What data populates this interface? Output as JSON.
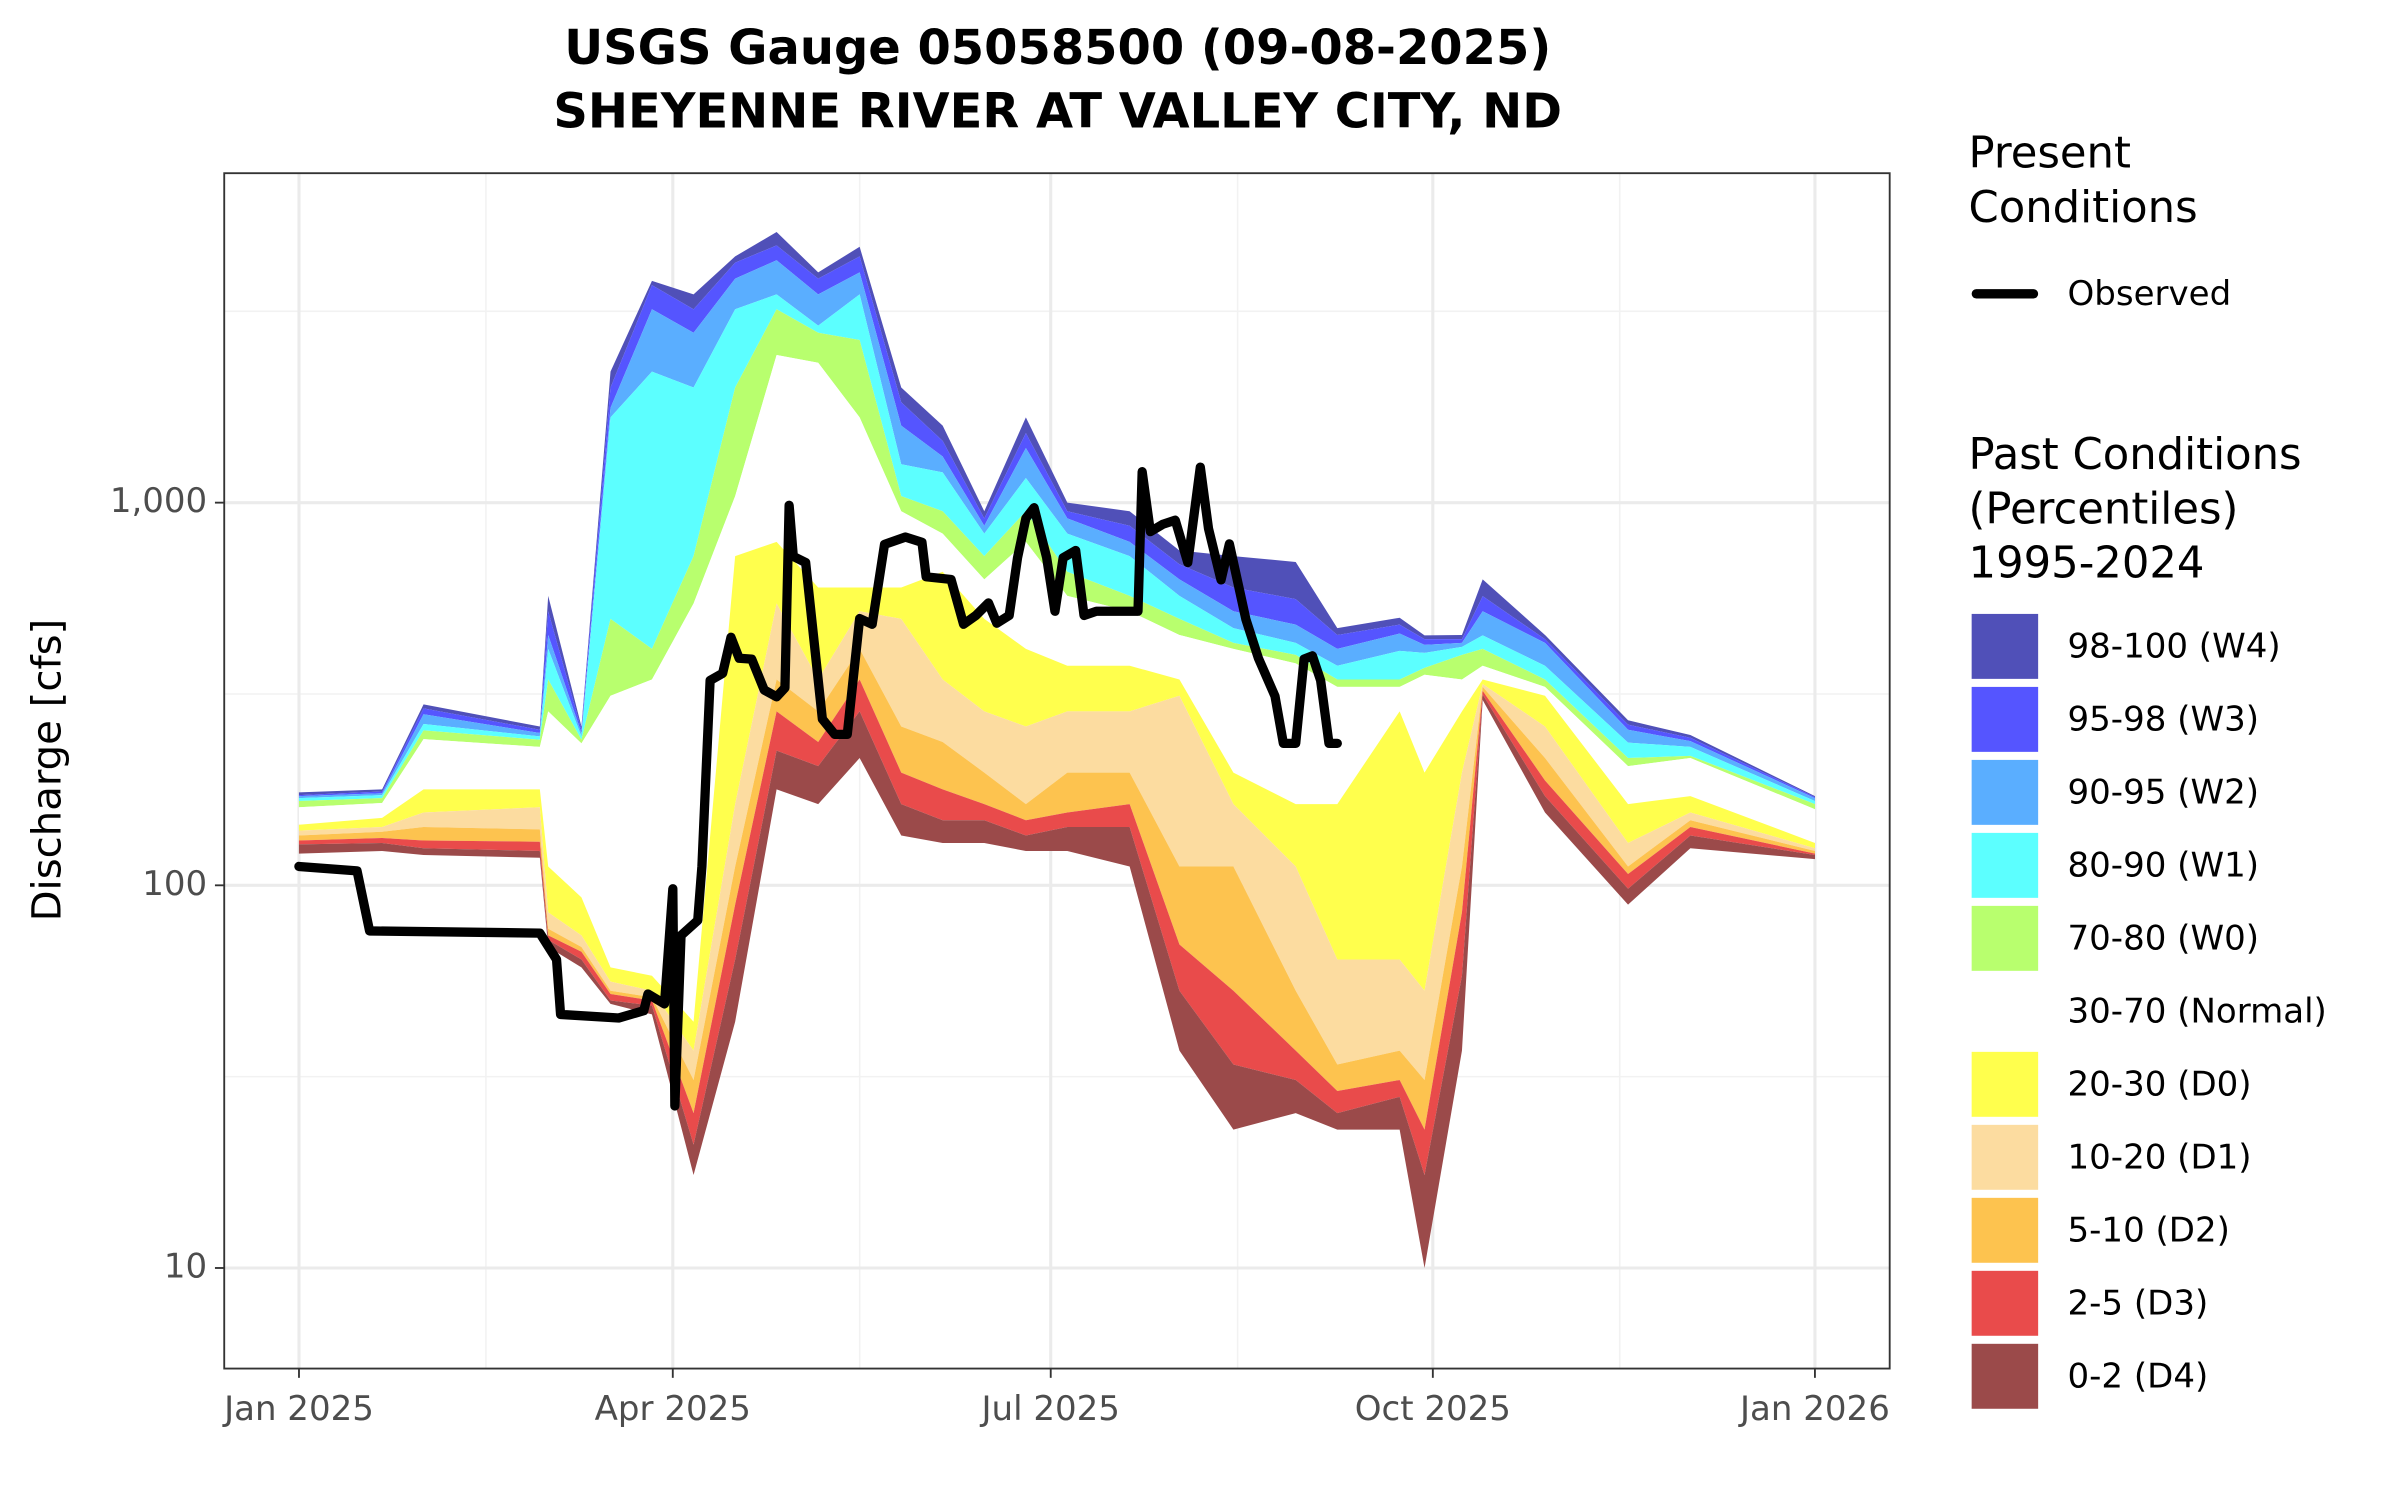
{
  "chart_data": {
    "type": "band",
    "title": "USGS Gauge 05058500 (09-08-2025)",
    "subtitle": "SHEYENNE RIVER AT VALLEY CITY, ND",
    "y_label": "Discharge [cfs]",
    "log_y": true,
    "grid": true,
    "xlim": [
      -18,
      383
    ],
    "ylim": [
      5.46,
      7260
    ],
    "xticks": [
      {
        "value": 0,
        "label": "Jan 2025"
      },
      {
        "value": 90,
        "label": "Apr 2025"
      },
      {
        "value": 181,
        "label": "Jul 2025"
      },
      {
        "value": 273,
        "label": "Oct 2025"
      },
      {
        "value": 365,
        "label": "Jan 2026"
      }
    ],
    "yticks": [
      10,
      100,
      {
        "value": 1000,
        "label": "1,000"
      }
    ],
    "present_title": [
      "Present",
      "Conditions"
    ],
    "past_title": [
      "Past Conditions",
      "(Percentiles)",
      "1995-2024"
    ],
    "observed": {
      "name": "Observed",
      "color": "#000000",
      "x": [
        0,
        14,
        17,
        58,
        62,
        63,
        77,
        83,
        84,
        88,
        90,
        90.5,
        92,
        96,
        97,
        99,
        102,
        104,
        106,
        109,
        112,
        115,
        117,
        118,
        119,
        122,
        126,
        129,
        132,
        135,
        138,
        141,
        146,
        150,
        151,
        157,
        160,
        163,
        166,
        168,
        171,
        173,
        175,
        177,
        180,
        182,
        184,
        187,
        189,
        192,
        202,
        203,
        205,
        208,
        211,
        214,
        217,
        219,
        222,
        224,
        228,
        231,
        235,
        237,
        240,
        242,
        244,
        246,
        248,
        250
      ],
      "values": [
        112,
        109,
        76,
        75,
        64,
        46,
        45,
        47,
        52,
        49,
        98,
        26.5,
        74,
        81,
        112,
        343,
        358,
        445,
        392,
        390,
        324,
        311,
        328,
        985,
        724,
        697,
        272,
        248,
        248,
        498,
        481,
        778,
        813,
        788,
        640,
        630,
        481,
        507,
        547,
        484,
        507,
        718,
        910,
        970,
        720,
        520,
        718,
        750,
        507,
        520,
        520,
        1205,
        840,
        878,
        900,
        697,
        1238,
        856,
        628,
        780,
        495,
        392,
        312,
        235,
        235,
        390,
        398,
        343,
        235,
        235
      ]
    },
    "x": [
      0,
      20,
      30,
      58,
      60,
      68,
      75,
      85,
      95,
      105,
      115,
      125,
      135,
      145,
      155,
      165,
      175,
      185,
      200,
      212,
      225,
      240,
      250,
      265,
      271,
      280,
      285,
      300,
      320,
      335,
      365
    ],
    "series": [
      {
        "name": "98-100 (W4)",
        "color": "#5050b8",
        "values": [
          175,
          178,
          297,
          260,
          571,
          260,
          2200,
          3800,
          3500,
          4400,
          5100,
          4000,
          4660,
          2000,
          1590,
          950,
          1670,
          1000,
          950,
          750,
          725,
          700,
          470,
          500,
          450,
          451,
          630,
          451,
          270,
          247,
          171
        ]
      },
      {
        "name": "95-98 (W3)",
        "color": "#5555ff",
        "values": [
          172,
          176,
          290,
          255,
          520,
          255,
          2000,
          3700,
          3200,
          4240,
          4700,
          3850,
          4400,
          1830,
          1450,
          910,
          1520,
          950,
          870,
          690,
          600,
          560,
          451,
          480,
          440,
          440,
          570,
          440,
          263,
          243,
          170
        ]
      },
      {
        "name": "90-95 (W2)",
        "color": "#5aaeff",
        "values": [
          171,
          174,
          280,
          250,
          451,
          250,
          1770,
          3200,
          2780,
          3850,
          4300,
          3500,
          4000,
          1590,
          1320,
          870,
          1390,
          910,
          790,
          630,
          520,
          480,
          415,
          455,
          425,
          430,
          520,
          430,
          255,
          238,
          169
        ]
      },
      {
        "name": "80-90 (W1)",
        "color": "#5cffff",
        "values": [
          169,
          172,
          264,
          245,
          415,
          245,
          1670,
          2200,
          2000,
          3200,
          3500,
          2900,
          3500,
          1260,
          1200,
          830,
          1160,
          830,
          725,
          571,
          470,
          430,
          375,
          410,
          405,
          420,
          450,
          375,
          236,
          230,
          166
        ]
      },
      {
        "name": "70-80 (W0)",
        "color": "#b8ff6e",
        "values": [
          166,
          169,
          254,
          240,
          345,
          240,
          497,
          415,
          725,
          2000,
          3200,
          2780,
          2660,
          1040,
          950,
          725,
          950,
          660,
          571,
          497,
          430,
          400,
          345,
          345,
          370,
          400,
          415,
          345,
          215,
          218,
          163
        ]
      },
      {
        "name": "30-70 (Normal)",
        "color": "#ffffff",
        "values": [
          160,
          164,
          241,
          230,
          285,
          235,
          313,
          345,
          545,
          1040,
          2430,
          2320,
          1670,
          950,
          830,
          630,
          790,
          571,
          520,
          451,
          415,
          380,
          330,
          330,
          355,
          345,
          375,
          330,
          205,
          215,
          158
        ]
      },
      {
        "name": "20-30 (D0)",
        "color": "#ffff4d",
        "values": [
          144,
          150,
          178,
          178,
          112,
          93,
          61,
          58,
          44,
          725,
          790,
          600,
          600,
          600,
          660,
          497,
          415,
          375,
          375,
          345,
          197,
          163,
          163,
          285,
          197,
          285,
          345,
          313,
          163,
          171,
          129
        ]
      },
      {
        "name": "10-20 (D1)",
        "color": "#fcdca0",
        "values": [
          139,
          142,
          155,
          160,
          85,
          74,
          56,
          53,
          37,
          163,
          545,
          345,
          520,
          497,
          345,
          285,
          260,
          285,
          285,
          313,
          163,
          112,
          64,
          64,
          53,
          197,
          336,
          260,
          129,
          155,
          125
        ]
      },
      {
        "name": "5-10 (D2)",
        "color": "#fdc34f",
        "values": [
          135,
          138,
          142,
          140,
          77,
          69,
          53,
          51,
          31,
          112,
          345,
          285,
          415,
          260,
          237,
          197,
          163,
          197,
          197,
          112,
          112,
          53,
          34,
          37,
          31,
          112,
          330,
          215,
          112,
          148,
          123
        ]
      },
      {
        "name": "2-5 (D3)",
        "color": "#e94b4b",
        "values": [
          131,
          133,
          131,
          130,
          74,
          67,
          52,
          50,
          25.4,
          89,
          285,
          237,
          345,
          197,
          178,
          163,
          148,
          155,
          163,
          70,
          53,
          37,
          29,
          31,
          23,
          85,
          322,
          188,
          107,
          142,
          121
        ]
      },
      {
        "name": "0-2 (D4)",
        "color": "#9b4a4a",
        "values": [
          128,
          129,
          125,
          123,
          72,
          64,
          50,
          48.5,
          21,
          64,
          225,
          205,
          285,
          163,
          148,
          148,
          135,
          142,
          142,
          53,
          34,
          31,
          25.4,
          28,
          17.5,
          58,
          315,
          171,
          98,
          135,
          120
        ],
        "low": [
          121,
          123,
          120,
          118,
          69,
          61,
          49,
          46,
          17.5,
          44,
          178,
          163,
          215,
          135,
          129,
          129,
          123,
          123,
          112,
          37,
          23,
          25.4,
          23,
          23,
          10,
          37,
          305,
          155,
          89,
          125,
          117
        ]
      }
    ]
  }
}
